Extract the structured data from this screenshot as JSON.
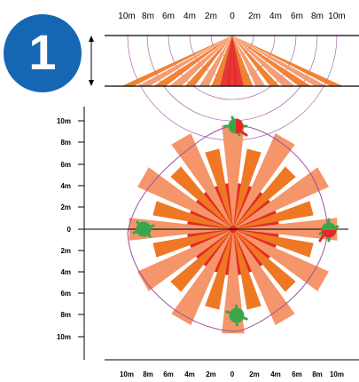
{
  "badge": {
    "number": "1",
    "color": "#1667b3"
  },
  "colors": {
    "red": "#e32926",
    "orange": "#ef7824",
    "salmon": "#f5956a",
    "green": "#3aa64a",
    "boundary": "#9b4f9b"
  },
  "side_view": {
    "top_scale_labels": [
      "10m",
      "8m",
      "6m",
      "4m",
      "2m",
      "0",
      "2m",
      "4m",
      "6m",
      "8m",
      "10m"
    ]
  },
  "top_view": {
    "y_axis_labels": [
      "10m",
      "8m",
      "6m",
      "4m",
      "2m",
      "0",
      "2m",
      "4m",
      "6m",
      "8m",
      "10m"
    ],
    "x_axis_labels": [
      "10m",
      "8m",
      "6m",
      "4m",
      "2m",
      "0",
      "2m",
      "4m",
      "6m",
      "8m",
      "10m"
    ]
  }
}
